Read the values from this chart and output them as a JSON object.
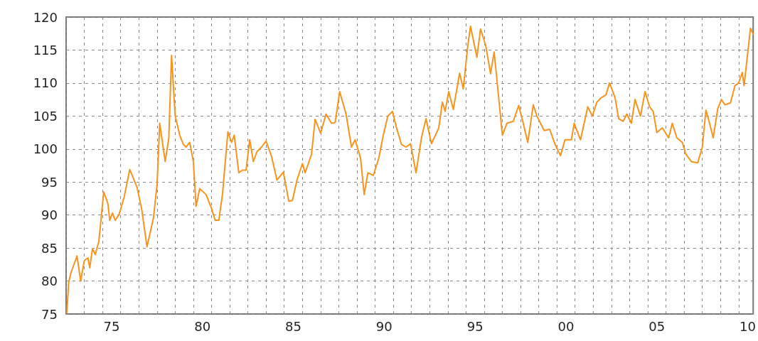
{
  "chart_data": {
    "type": "line",
    "xlim": [
      1972.5,
      2010.3
    ],
    "ylim": [
      75,
      120
    ],
    "yticks": [
      75,
      80,
      85,
      90,
      95,
      100,
      105,
      110,
      115,
      120
    ],
    "xticks": [
      {
        "value": 1972.5,
        "label": null
      },
      {
        "value": 1973.5,
        "label": null
      },
      {
        "value": 1974.5,
        "label": null
      },
      {
        "value": 1975,
        "label": "75"
      },
      {
        "value": 1975.5,
        "label": null
      },
      {
        "value": 1976.5,
        "label": null
      },
      {
        "value": 1977.5,
        "label": null
      },
      {
        "value": 1978.5,
        "label": null
      },
      {
        "value": 1979.5,
        "label": null
      },
      {
        "value": 1980,
        "label": "80"
      },
      {
        "value": 1980.5,
        "label": null
      },
      {
        "value": 1981.5,
        "label": null
      },
      {
        "value": 1982.5,
        "label": null
      },
      {
        "value": 1983.5,
        "label": null
      },
      {
        "value": 1984.5,
        "label": null
      },
      {
        "value": 1985,
        "label": "85"
      },
      {
        "value": 1985.5,
        "label": null
      },
      {
        "value": 1986.5,
        "label": null
      },
      {
        "value": 1987.5,
        "label": null
      },
      {
        "value": 1988.5,
        "label": null
      },
      {
        "value": 1989.5,
        "label": null
      },
      {
        "value": 1990,
        "label": "90"
      },
      {
        "value": 1990.5,
        "label": null
      },
      {
        "value": 1991.5,
        "label": null
      },
      {
        "value": 1992.5,
        "label": null
      },
      {
        "value": 1993.5,
        "label": null
      },
      {
        "value": 1994.5,
        "label": null
      },
      {
        "value": 1995,
        "label": "95"
      },
      {
        "value": 1995.5,
        "label": null
      },
      {
        "value": 1996.5,
        "label": null
      },
      {
        "value": 1997.5,
        "label": null
      },
      {
        "value": 1998.5,
        "label": null
      },
      {
        "value": 1999.5,
        "label": null
      },
      {
        "value": 2000,
        "label": "00"
      },
      {
        "value": 2000.5,
        "label": null
      },
      {
        "value": 2001.5,
        "label": null
      },
      {
        "value": 2002.5,
        "label": null
      },
      {
        "value": 2003.5,
        "label": null
      },
      {
        "value": 2004.5,
        "label": null
      },
      {
        "value": 2005,
        "label": "05"
      },
      {
        "value": 2005.5,
        "label": null
      },
      {
        "value": 2006.5,
        "label": null
      },
      {
        "value": 2007.5,
        "label": null
      },
      {
        "value": 2008.5,
        "label": null
      },
      {
        "value": 2009.5,
        "label": null
      },
      {
        "value": 2010,
        "label": "10"
      }
    ],
    "grid": true,
    "marker": "none",
    "line_style": "solid",
    "series": [
      {
        "color": "#f7941d",
        "x": [
          1972.54,
          1972.64,
          1972.77,
          1973.1,
          1973.3,
          1973.5,
          1973.7,
          1973.8,
          1973.95,
          1974.1,
          1974.3,
          1974.57,
          1974.8,
          1974.9,
          1975.05,
          1975.2,
          1975.4,
          1975.7,
          1976.0,
          1976.15,
          1976.4,
          1976.65,
          1976.95,
          1977.3,
          1977.5,
          1977.65,
          1977.95,
          1978.15,
          1978.3,
          1978.5,
          1978.75,
          1978.95,
          1979.1,
          1979.3,
          1979.5,
          1979.65,
          1979.85,
          1980.2,
          1980.5,
          1980.7,
          1980.9,
          1981.1,
          1981.4,
          1981.6,
          1981.75,
          1982.0,
          1982.2,
          1982.4,
          1982.6,
          1982.8,
          1983.0,
          1983.25,
          1983.5,
          1983.8,
          1984.1,
          1984.45,
          1984.75,
          1984.95,
          1985.2,
          1985.5,
          1985.65,
          1986.0,
          1986.2,
          1986.5,
          1986.8,
          1987.1,
          1987.3,
          1987.55,
          1987.9,
          1988.2,
          1988.4,
          1988.7,
          1988.9,
          1989.1,
          1989.4,
          1989.7,
          1989.95,
          1990.2,
          1990.45,
          1990.7,
          1990.95,
          1991.2,
          1991.45,
          1991.75,
          1992.05,
          1992.3,
          1992.6,
          1993.0,
          1993.2,
          1993.35,
          1993.55,
          1993.8,
          1994.15,
          1994.35,
          1994.6,
          1994.75,
          1995.1,
          1995.3,
          1995.6,
          1995.85,
          1996.05,
          1996.5,
          1996.75,
          1997.1,
          1997.4,
          1997.65,
          1997.9,
          1998.2,
          1998.4,
          1998.8,
          1999.1,
          1999.4,
          1999.7,
          1999.95,
          2000.3,
          2000.45,
          2000.8,
          2001.2,
          2001.45,
          2001.7,
          2001.95,
          2002.2,
          2002.4,
          2002.7,
          2002.9,
          2003.15,
          2003.35,
          2003.6,
          2003.8,
          2004.1,
          2004.35,
          2004.6,
          2004.8,
          2005.0,
          2005.3,
          2005.65,
          2005.85,
          2006.1,
          2006.4,
          2006.6,
          2006.9,
          2007.25,
          2007.5,
          2007.7,
          2007.9,
          2008.1,
          2008.35,
          2008.55,
          2008.75,
          2009.05,
          2009.3,
          2009.5,
          2009.7,
          2009.8,
          2010.15,
          2010.3
        ],
        "values": [
          75.2,
          79.8,
          81.3,
          83.8,
          80.0,
          83.1,
          83.5,
          82.0,
          84.9,
          84.0,
          86.0,
          93.5,
          91.7,
          89.2,
          90.3,
          89.2,
          90.0,
          92.8,
          96.9,
          95.9,
          94.2,
          91.0,
          85.2,
          89.5,
          94.5,
          103.9,
          98.1,
          101.7,
          114.2,
          105.0,
          102.1,
          100.7,
          100.3,
          101.0,
          98.1,
          91.3,
          94.0,
          93.1,
          91.0,
          89.2,
          89.2,
          93.1,
          102.6,
          101.0,
          102.1,
          96.4,
          96.8,
          96.8,
          101.4,
          98.1,
          99.6,
          100.3,
          101.2,
          98.9,
          95.3,
          96.5,
          92.1,
          92.2,
          95.3,
          97.8,
          96.4,
          99.2,
          104.5,
          102.4,
          105.3,
          103.9,
          104.0,
          108.7,
          105.3,
          100.3,
          101.4,
          98.6,
          93.1,
          96.4,
          96.0,
          98.6,
          102.1,
          105.0,
          105.7,
          103.0,
          100.7,
          100.3,
          100.8,
          96.4,
          101.7,
          104.6,
          100.8,
          103.2,
          107.1,
          105.7,
          108.7,
          106.0,
          111.5,
          109.1,
          115.7,
          118.6,
          113.9,
          118.2,
          115.5,
          111.4,
          114.7,
          102.1,
          103.9,
          104.2,
          106.6,
          103.9,
          101.0,
          106.7,
          105.0,
          102.8,
          103.0,
          100.7,
          99.0,
          101.4,
          101.4,
          103.9,
          101.4,
          106.4,
          105.0,
          107.1,
          107.8,
          108.2,
          110.0,
          107.8,
          104.6,
          104.2,
          105.3,
          103.9,
          107.5,
          105.0,
          108.7,
          106.4,
          105.7,
          102.5,
          103.2,
          101.7,
          103.9,
          101.7,
          101.0,
          99.2,
          98.1,
          97.9,
          100.3,
          105.9,
          103.9,
          101.7,
          106.1,
          107.5,
          106.7,
          107.0,
          109.6,
          110.0,
          111.6,
          109.6,
          118.3,
          117.4
        ]
      }
    ]
  }
}
